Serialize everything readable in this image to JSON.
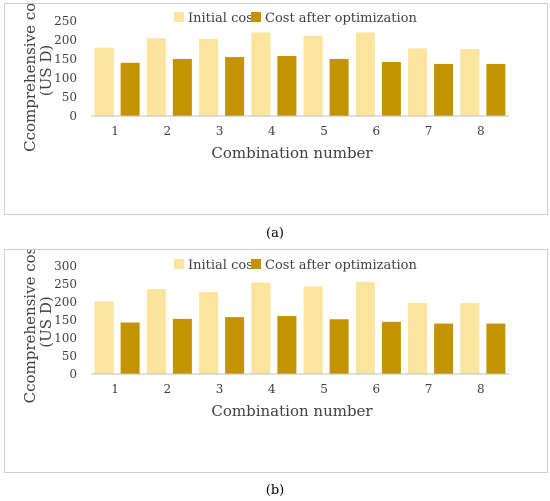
{
  "figure": {
    "caption_a": "(a)",
    "caption_b": "(b)"
  },
  "colors": {
    "initial": "#fbe49e",
    "optimized": "#c39400",
    "axis": "#bfbfbf",
    "text": "#404040"
  },
  "chart_data": [
    {
      "type": "bar",
      "panel": "a",
      "xlabel": "Combination number",
      "ylabel_line1": "Ccomprehensive cost",
      "ylabel_line2": "(US D)",
      "categories": [
        "1",
        "2",
        "3",
        "4",
        "5",
        "6",
        "7",
        "8"
      ],
      "ylim": [
        0,
        250
      ],
      "yticks": [
        "0",
        "50",
        "100",
        "150",
        "200",
        "250"
      ],
      "legend_position": "top",
      "series": [
        {
          "name": "Initial cost",
          "values": [
            180,
            205,
            203,
            220,
            211,
            220,
            178,
            176
          ]
        },
        {
          "name": "Cost after optimization",
          "values": [
            140,
            150,
            155,
            158,
            150,
            142,
            137,
            137
          ]
        }
      ]
    },
    {
      "type": "bar",
      "panel": "b",
      "xlabel": "Combination number",
      "ylabel_line1": "Ccomprehensive cost",
      "ylabel_line2": "(US D)",
      "categories": [
        "1",
        "2",
        "3",
        "4",
        "5",
        "6",
        "7",
        "8"
      ],
      "ylim": [
        0,
        300
      ],
      "yticks": [
        "0",
        "50",
        "100",
        "150",
        "200",
        "250",
        "300"
      ],
      "legend_position": "top",
      "series": [
        {
          "name": "Initial cost",
          "values": [
            202,
            236,
            228,
            254,
            243,
            256,
            197,
            197
          ]
        },
        {
          "name": "Cost after optimization",
          "values": [
            143,
            153,
            158,
            161,
            152,
            145,
            140,
            140
          ]
        }
      ]
    }
  ]
}
